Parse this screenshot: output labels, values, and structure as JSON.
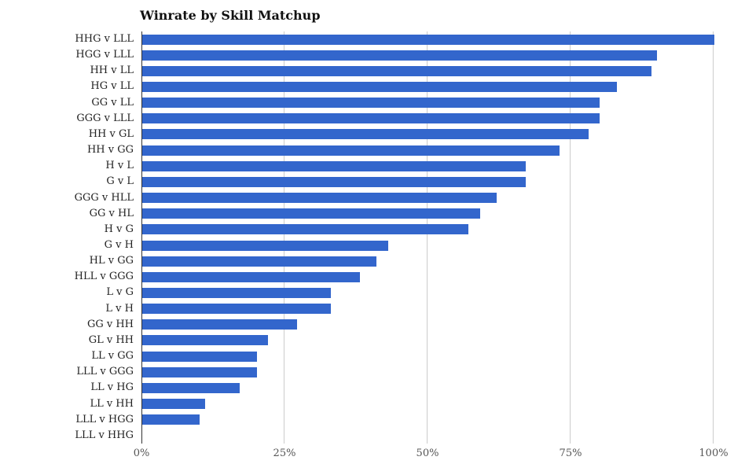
{
  "title": "Winrate by Skill Matchup",
  "colors": {
    "bar": "#3366cc",
    "gridline": "#cccccc",
    "axis_line": "#333333",
    "category_label": "#222222",
    "tick_label": "#555555",
    "background": "#ffffff"
  },
  "chart_data": {
    "type": "bar",
    "orientation": "horizontal",
    "title": "Winrate by Skill Matchup",
    "xlabel": "",
    "ylabel": "",
    "xlim": [
      0,
      100
    ],
    "grid": true,
    "legend": "none",
    "x_ticks": [
      {
        "label": "0%",
        "value": 0
      },
      {
        "label": "25%",
        "value": 25
      },
      {
        "label": "50%",
        "value": 50
      },
      {
        "label": "75%",
        "value": 75
      },
      {
        "label": "100%",
        "value": 100
      }
    ],
    "categories": [
      "HHG v LLL",
      "HGG v LLL",
      "HH v LL",
      "HG v LL",
      "GG v LL",
      "GGG v LLL",
      "HH v GL",
      "HH v GG",
      "H v L",
      "G v L",
      "GGG v HLL",
      "GG v HL",
      "H v G",
      "G v H",
      "HL v GG",
      "HLL v GGG",
      "L v G",
      "L v H",
      "GG v HH",
      "GL v HH",
      "LL v GG",
      "LLL v GGG",
      "LL v HG",
      "LL v HH",
      "LLL v HGG",
      "LLL v HHG"
    ],
    "values": [
      100,
      90,
      89,
      83,
      80,
      80,
      78,
      73,
      67,
      67,
      62,
      59,
      57,
      43,
      41,
      38,
      33,
      33,
      27,
      22,
      20,
      20,
      17,
      11,
      10,
      0
    ],
    "value_unit": "%"
  }
}
